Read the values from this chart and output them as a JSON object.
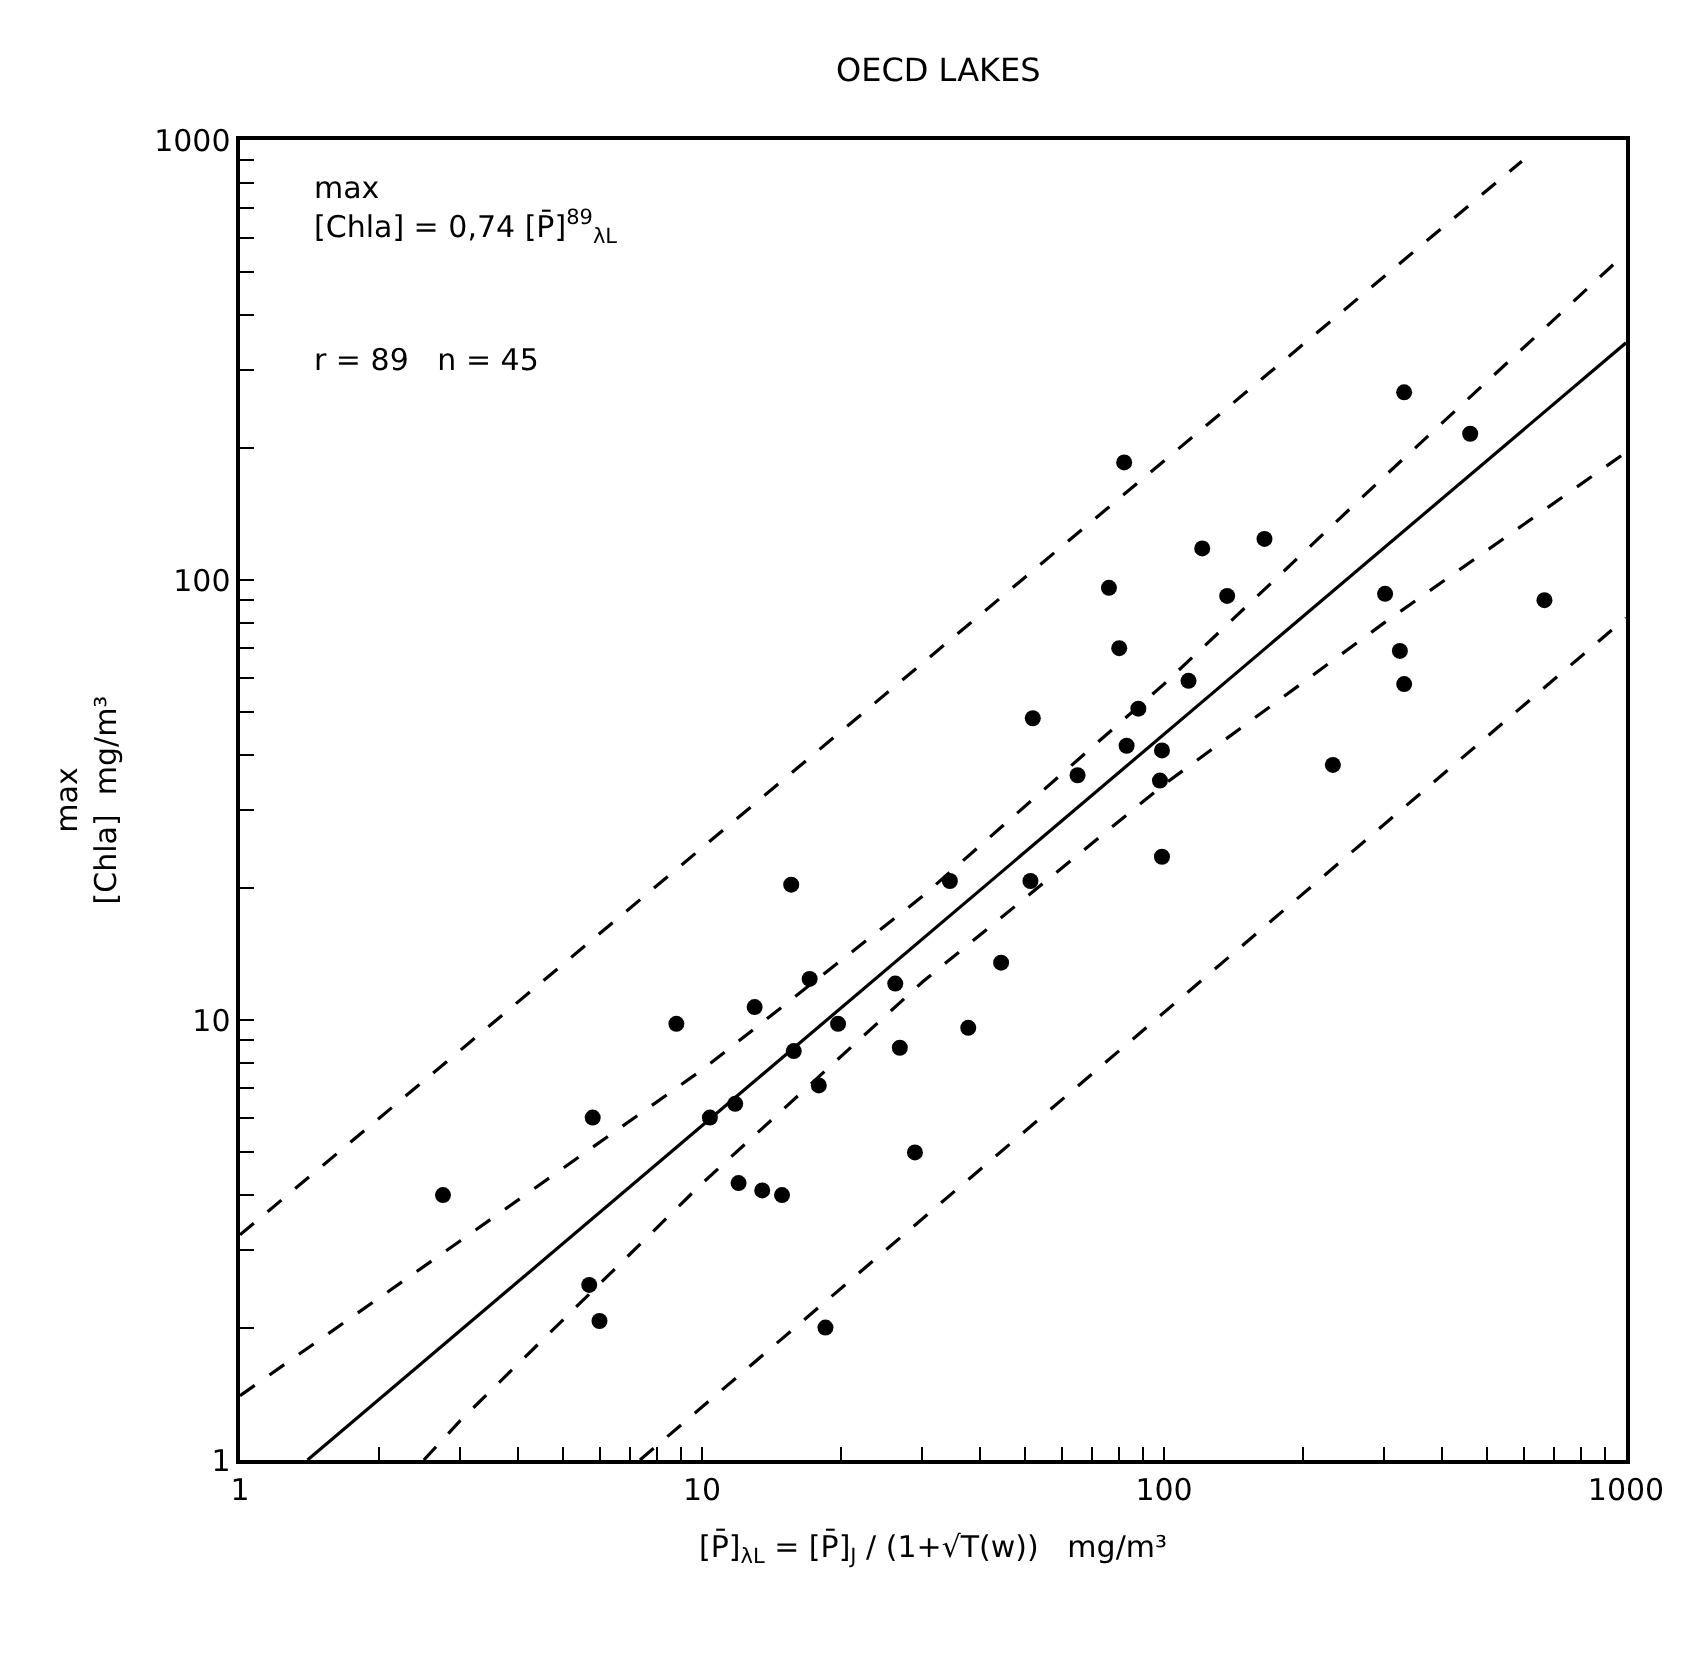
{
  "chart_data": {
    "type": "scatter",
    "title": "OECD LAKES",
    "xlabel": "[P̄]$_{λL}$ = [P̄]$_{J}$ / (1+√T(w))   mg/m³",
    "ylabel": "max\n[Chla]  mg/m³",
    "annotations": [
      "max\n[Chla] = 0,74 [P̄]$^{89}$$_{λL}$",
      "r = 89   n = 45"
    ],
    "log": "xy",
    "xlim": [
      1,
      1000
    ],
    "ylim": [
      1,
      1000
    ],
    "xticks": [
      1,
      {
        "value": 2,
        "label": null
      },
      {
        "value": 3,
        "label": null
      },
      {
        "value": 4,
        "label": null
      },
      {
        "value": 5,
        "label": null
      },
      {
        "value": 6,
        "label": null
      },
      {
        "value": 7,
        "label": null
      },
      {
        "value": 8,
        "label": null
      },
      {
        "value": 9,
        "label": null
      },
      10,
      {
        "value": 20,
        "label": null
      },
      {
        "value": 30,
        "label": null
      },
      {
        "value": 40,
        "label": null
      },
      {
        "value": 50,
        "label": null
      },
      {
        "value": 60,
        "label": null
      },
      {
        "value": 70,
        "label": null
      },
      {
        "value": 80,
        "label": null
      },
      {
        "value": 90,
        "label": null
      },
      100,
      {
        "value": 200,
        "label": null
      },
      {
        "value": 300,
        "label": null
      },
      {
        "value": 400,
        "label": null
      },
      {
        "value": 500,
        "label": null
      },
      {
        "value": 600,
        "label": null
      },
      {
        "value": 700,
        "label": null
      },
      {
        "value": 800,
        "label": null
      },
      {
        "value": 900,
        "label": null
      },
      1000
    ],
    "yticks": [
      1,
      {
        "value": 2,
        "label": null
      },
      {
        "value": 3,
        "label": null
      },
      {
        "value": 4,
        "label": null
      },
      {
        "value": 5,
        "label": null
      },
      {
        "value": 6,
        "label": null
      },
      {
        "value": 7,
        "label": null
      },
      {
        "value": 8,
        "label": null
      },
      {
        "value": 9,
        "label": null
      },
      10,
      {
        "value": 20,
        "label": null
      },
      {
        "value": 30,
        "label": null
      },
      {
        "value": 40,
        "label": null
      },
      {
        "value": 50,
        "label": null
      },
      {
        "value": 60,
        "label": null
      },
      {
        "value": 70,
        "label": null
      },
      {
        "value": 80,
        "label": null
      },
      {
        "value": 90,
        "label": null
      },
      100,
      {
        "value": 200,
        "label": null
      },
      {
        "value": 300,
        "label": null
      },
      {
        "value": 400,
        "label": null
      },
      {
        "value": 500,
        "label": null
      },
      {
        "value": 600,
        "label": null
      },
      {
        "value": 700,
        "label": null
      },
      {
        "value": 800,
        "label": null
      },
      {
        "value": 900,
        "label": null
      },
      1000
    ],
    "series": [
      {
        "type": "line",
        "color": "#000000",
        "marker": "none",
        "line_style": "dashed",
        "x": [
          1,
          595
        ],
        "values": [
          3.25,
          895
        ]
      },
      {
        "type": "line",
        "color": "#000000",
        "marker": "none",
        "line_style": "dashed",
        "x": [
          1,
          3,
          10,
          30,
          100,
          300,
          1000
        ],
        "values": [
          1.4,
          3.15,
          7.7,
          19.1,
          58,
          172,
          554
        ]
      },
      {
        "type": "line",
        "color": "#000000",
        "marker": "none",
        "line_style": "solid",
        "x": [
          1.4,
          1000
        ],
        "values": [
          1.0,
          346
        ]
      },
      {
        "type": "line",
        "color": "#000000",
        "marker": "none",
        "line_style": "dashed",
        "x": [
          2.5,
          3,
          10,
          30,
          100,
          300,
          1000
        ],
        "values": [
          1.0,
          1.23,
          4.25,
          12.2,
          34.3,
          80,
          195
        ]
      },
      {
        "type": "line",
        "color": "#000000",
        "marker": "none",
        "line_style": "dashed",
        "x": [
          7.34,
          1000
        ],
        "values": [
          1.0,
          82
        ]
      },
      {
        "color": "#000000",
        "marker": "circle",
        "x": [
          82,
          331,
          460,
          121,
          165,
          76,
          137,
          301,
          666,
          80,
          324,
          331,
          113,
          88,
          52,
          83,
          99,
          65,
          98,
          232,
          99,
          15.6,
          34.4,
          51.4,
          17.1,
          13.0,
          26.2,
          44.4,
          8.8,
          19.7,
          37.7,
          15.8,
          26.8,
          17.9,
          11.8,
          10.4,
          5.8,
          28.9,
          2.75,
          12.0,
          13.5,
          14.9,
          5.7,
          6.0,
          18.5
        ],
        "values": [
          185,
          267,
          215,
          118,
          124,
          96,
          92,
          93,
          90,
          70,
          69,
          58,
          59,
          51,
          48.5,
          42,
          41,
          36,
          35,
          38,
          23.5,
          20.3,
          20.7,
          20.7,
          12.4,
          10.7,
          12.1,
          13.5,
          9.8,
          9.8,
          9.6,
          8.5,
          8.65,
          7.1,
          6.45,
          6.0,
          6.0,
          5.0,
          4.0,
          4.26,
          4.1,
          4.0,
          2.5,
          2.07,
          2.0
        ]
      }
    ]
  }
}
